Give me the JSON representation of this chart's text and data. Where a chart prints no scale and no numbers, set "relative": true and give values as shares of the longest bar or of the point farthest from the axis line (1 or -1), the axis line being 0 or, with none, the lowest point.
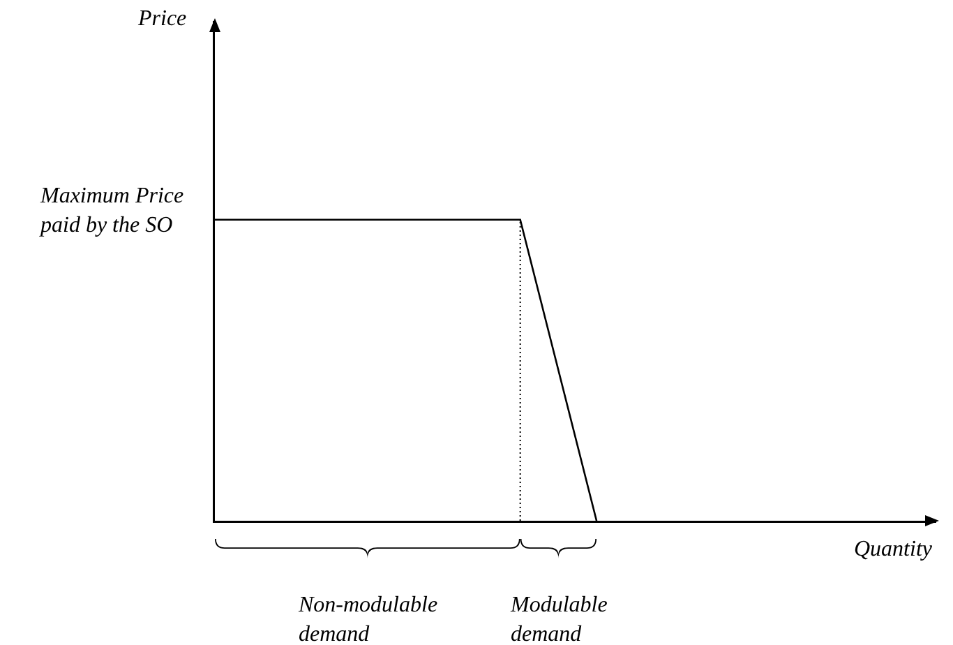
{
  "chart_data": {
    "type": "line",
    "relative": true,
    "marker": "none",
    "line_style": "solid",
    "categories": [
      null,
      null,
      null,
      null,
      null,
      null
    ],
    "series": [
      {
        "color": "#000000",
        "values": [
          1,
          1,
          1,
          1,
          1,
          0
        ]
      }
    ],
    "annotations": [
      "Price",
      "Maximum Price paid by the SO",
      "Quantity",
      "Non-modulable demand",
      "Modulable demand"
    ]
  }
}
